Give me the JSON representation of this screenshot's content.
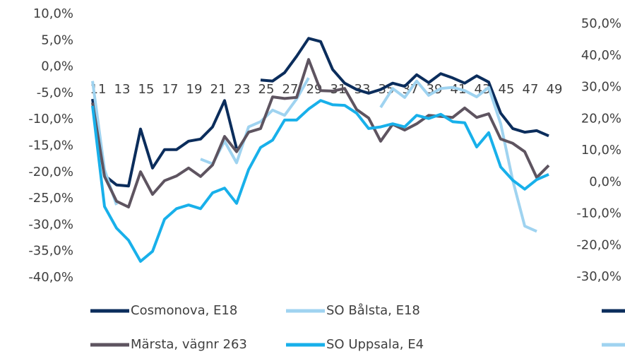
{
  "chart_data": {
    "type": "line",
    "categories": [
      "11",
      null,
      "13",
      null,
      "15",
      null,
      "17",
      null,
      "19",
      null,
      "21",
      null,
      "23",
      null,
      "25",
      null,
      "27",
      null,
      "29",
      null,
      "31",
      null,
      "33",
      null,
      "35",
      null,
      "37",
      null,
      "39",
      null,
      "41",
      null,
      "43",
      null,
      "45",
      null,
      "47",
      null,
      "49"
    ],
    "series": [
      {
        "name": "Cosmonova, E18",
        "color": "#0b2d5c",
        "values": [
          -6.1,
          -20.6,
          -22.4,
          -22.6,
          -11.8,
          -19.2,
          -15.7,
          -15.7,
          -14.1,
          -13.7,
          -11.4,
          -6.4,
          -15.5,
          null,
          -2.5,
          -2.7,
          -1.1,
          2.0,
          5.4,
          4.8,
          -0.5,
          -3.1,
          -4.3,
          -5.0,
          -4.3,
          -3.1,
          -3.7,
          -1.5,
          -3.0,
          -1.3,
          -2.1,
          -3.1,
          -1.7,
          -2.9,
          -8.8,
          -11.7,
          -12.4,
          -12.1,
          -13.1
        ]
      },
      {
        "name": "SO Bålsta, E18",
        "color": "#9fd3f0",
        "values": [
          -2.7,
          -19.5,
          -26.2,
          null,
          null,
          null,
          null,
          null,
          null,
          -17.5,
          -18.4,
          -14.1,
          -18.2,
          -11.4,
          -10.4,
          -8.2,
          -9.2,
          -6.1,
          -2.1,
          null,
          null,
          null,
          null,
          null,
          -7.7,
          -4.1,
          -5.8,
          -2.7,
          -5.4,
          -4.1,
          -3.9,
          -4.5,
          -5.7,
          -3.9,
          -10.8,
          -21.5,
          -30.2,
          -31.2,
          null
        ]
      },
      {
        "name": "Märsta, vägnr 263",
        "color": "#5e5460",
        "values": [
          -6.8,
          -20.8,
          -25.5,
          -26.6,
          -19.9,
          -24.2,
          -21.6,
          -20.7,
          -19.2,
          -20.8,
          -18.6,
          -13.2,
          -16.1,
          -12.4,
          -11.7,
          -5.7,
          -6.0,
          -5.8,
          1.4,
          -4.5,
          -4.6,
          -4.1,
          -8.1,
          -9.7,
          -14.1,
          -10.9,
          -12.0,
          -10.8,
          -9.2,
          -9.4,
          -9.6,
          -7.8,
          -9.6,
          -8.9,
          -13.7,
          -14.5,
          -16.1,
          -21.0,
          -18.7
        ]
      },
      {
        "name": "SO Uppsala, E4",
        "color": "#18b0ea",
        "values": [
          -7.4,
          -26.5,
          -30.6,
          -32.9,
          -36.9,
          -35.0,
          -28.9,
          -26.9,
          -26.2,
          -26.9,
          -23.9,
          -23.0,
          -25.9,
          -19.5,
          -15.3,
          -13.9,
          -10.1,
          -10.1,
          -8.0,
          -6.4,
          -7.2,
          -7.3,
          -8.8,
          -11.7,
          -11.4,
          -10.8,
          -11.4,
          -9.2,
          -9.8,
          -9.0,
          -10.4,
          -10.6,
          -15.2,
          -12.5,
          -19.0,
          -21.5,
          -23.2,
          -21.4,
          -20.4
        ]
      }
    ],
    "ylim": [
      -40,
      10
    ],
    "yticks": [
      {
        "value": -40,
        "label": "-40,0%"
      },
      {
        "value": -35,
        "label": "-35,0%"
      },
      {
        "value": -30,
        "label": "-30,0%"
      },
      {
        "value": -25,
        "label": "-25,0%"
      },
      {
        "value": -20,
        "label": "-20,0%"
      },
      {
        "value": -15,
        "label": "-15,0%"
      },
      {
        "value": -10,
        "label": "-10,0%"
      },
      {
        "value": -5,
        "label": "-5,0%"
      },
      {
        "value": 0,
        "label": "0,0%"
      },
      {
        "value": 5,
        "label": "5,0%"
      },
      {
        "value": 10,
        "label": "10,0%"
      }
    ],
    "y2lim": [
      -30,
      50
    ],
    "y2ticks": [
      {
        "value": -30,
        "label": "-30,0%"
      },
      {
        "value": -20,
        "label": "-20,0%"
      },
      {
        "value": -10,
        "label": "-10,0%"
      },
      {
        "value": 0,
        "label": "0,0%"
      },
      {
        "value": 10,
        "label": "10,0%"
      },
      {
        "value": 20,
        "label": "20,0%"
      },
      {
        "value": 30,
        "label": "30,0%"
      },
      {
        "value": 40,
        "label": "40,0%"
      },
      {
        "value": 50,
        "label": "50,0%"
      }
    ]
  }
}
